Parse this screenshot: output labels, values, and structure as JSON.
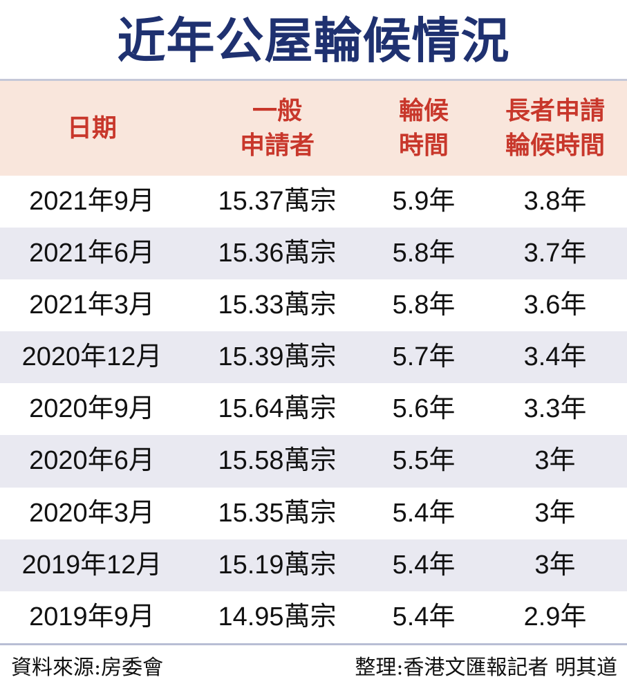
{
  "title": "近年公屋輪候情況",
  "header": {
    "col_date": "日期",
    "col_general_line1": "一般",
    "col_general_line2": "申請者",
    "col_wait_line1": "輪候",
    "col_wait_line2": "時間",
    "col_elderly_line1": "長者申請",
    "col_elderly_line2": "輪候時間"
  },
  "rows": [
    {
      "date": "2021年9月",
      "applicants": "15.37萬宗",
      "wait": "5.9年",
      "elderly_wait": "3.8年"
    },
    {
      "date": "2021年6月",
      "applicants": "15.36萬宗",
      "wait": "5.8年",
      "elderly_wait": "3.7年"
    },
    {
      "date": "2021年3月",
      "applicants": "15.33萬宗",
      "wait": "5.8年",
      "elderly_wait": "3.6年"
    },
    {
      "date": "2020年12月",
      "applicants": "15.39萬宗",
      "wait": "5.7年",
      "elderly_wait": "3.4年"
    },
    {
      "date": "2020年9月",
      "applicants": "15.64萬宗",
      "wait": "5.6年",
      "elderly_wait": "3.3年"
    },
    {
      "date": "2020年6月",
      "applicants": "15.58萬宗",
      "wait": "5.5年",
      "elderly_wait": "3年"
    },
    {
      "date": "2020年3月",
      "applicants": "15.35萬宗",
      "wait": "5.4年",
      "elderly_wait": "3年"
    },
    {
      "date": "2019年12月",
      "applicants": "15.19萬宗",
      "wait": "5.4年",
      "elderly_wait": "3年"
    },
    {
      "date": "2019年9月",
      "applicants": "14.95萬宗",
      "wait": "5.4年",
      "elderly_wait": "2.9年"
    }
  ],
  "footer": {
    "source": "資料來源:房委會",
    "credit": "整理:香港文匯報記者 明其道"
  },
  "colors": {
    "title": "#1f3170",
    "header_text": "#c8372b",
    "header_bg": "#f9e6dc",
    "alt_row_bg": "#e9e9f1",
    "rule": "#b8bed4"
  },
  "chart_data": {
    "type": "table",
    "title": "近年公屋輪候情況",
    "columns": [
      "日期",
      "一般申請者",
      "輪候時間",
      "長者申請輪候時間"
    ],
    "rows": [
      [
        "2021年9月",
        "15.37萬宗",
        "5.9年",
        "3.8年"
      ],
      [
        "2021年6月",
        "15.36萬宗",
        "5.8年",
        "3.7年"
      ],
      [
        "2021年3月",
        "15.33萬宗",
        "5.8年",
        "3.6年"
      ],
      [
        "2020年12月",
        "15.39萬宗",
        "5.7年",
        "3.4年"
      ],
      [
        "2020年9月",
        "15.64萬宗",
        "5.6年",
        "3.3年"
      ],
      [
        "2020年6月",
        "15.58萬宗",
        "5.5年",
        "3年"
      ],
      [
        "2020年3月",
        "15.35萬宗",
        "5.4年",
        "3年"
      ],
      [
        "2019年12月",
        "15.19萬宗",
        "5.4年",
        "3年"
      ],
      [
        "2019年9月",
        "14.95萬宗",
        "5.4年",
        "2.9年"
      ]
    ],
    "series": [
      {
        "name": "一般申請者 (萬宗)",
        "values": [
          15.37,
          15.36,
          15.33,
          15.39,
          15.64,
          15.58,
          15.35,
          15.19,
          14.95
        ]
      },
      {
        "name": "輪候時間 (年)",
        "values": [
          5.9,
          5.8,
          5.8,
          5.7,
          5.6,
          5.5,
          5.4,
          5.4,
          5.4
        ]
      },
      {
        "name": "長者申請輪候時間 (年)",
        "values": [
          3.8,
          3.7,
          3.6,
          3.4,
          3.3,
          3.0,
          3.0,
          3.0,
          2.9
        ]
      }
    ],
    "categories": [
      "2021年9月",
      "2021年6月",
      "2021年3月",
      "2020年12月",
      "2020年9月",
      "2020年6月",
      "2020年3月",
      "2019年12月",
      "2019年9月"
    ],
    "source": "資料來源:房委會",
    "credit": "整理:香港文匯報記者 明其道"
  }
}
